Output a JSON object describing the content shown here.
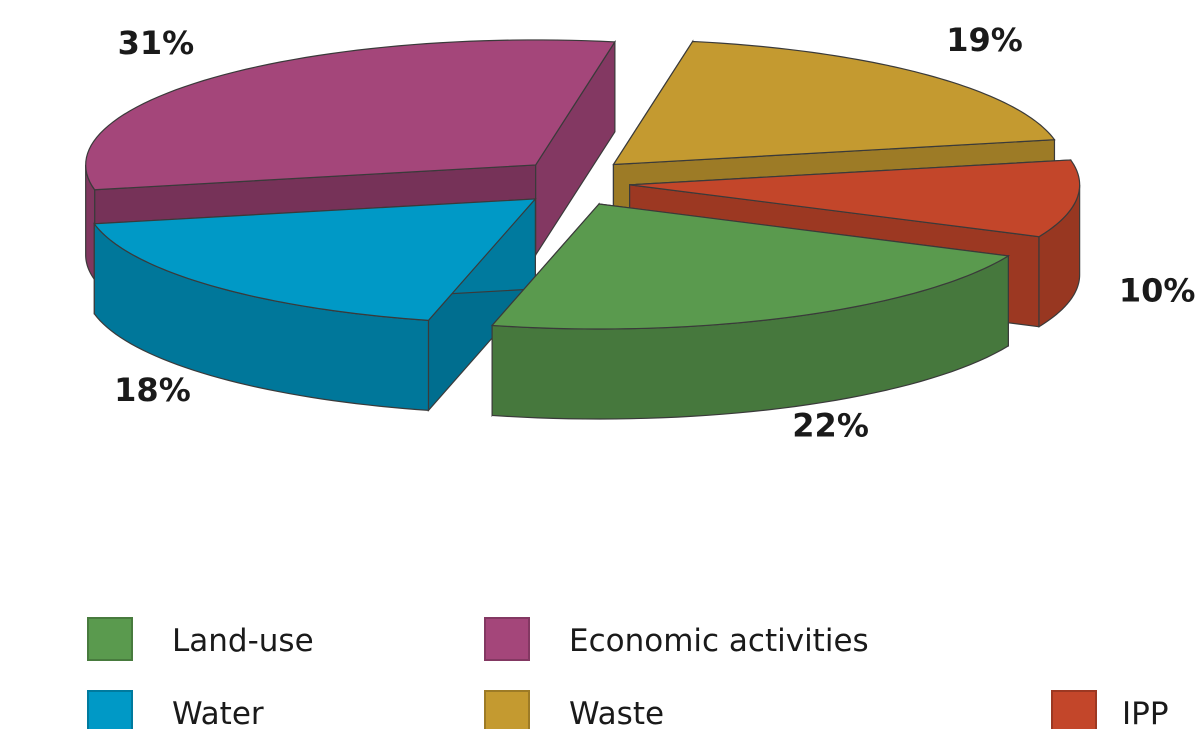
{
  "chart_data": {
    "type": "pie",
    "title": "",
    "slices": [
      {
        "name": "IPP",
        "value": 10,
        "label": "10%",
        "color": "#c3462a"
      },
      {
        "name": "Land-use",
        "value": 22,
        "label": "22%",
        "color": "#5a9a4e"
      },
      {
        "name": "Water",
        "value": 18,
        "label": "18%",
        "color": "#0099c6"
      },
      {
        "name": "Economic activities",
        "value": 31,
        "label": "31%",
        "color": "#a4467a"
      },
      {
        "name": "Waste",
        "value": 19,
        "label": "19%",
        "color": "#c49a30"
      }
    ],
    "legend": {
      "placement": "bottom",
      "rows": [
        [
          "Land-use",
          "Economic activities"
        ],
        [
          "Water",
          "Waste",
          "IPP"
        ]
      ]
    },
    "exploded": true,
    "style": "3d"
  }
}
